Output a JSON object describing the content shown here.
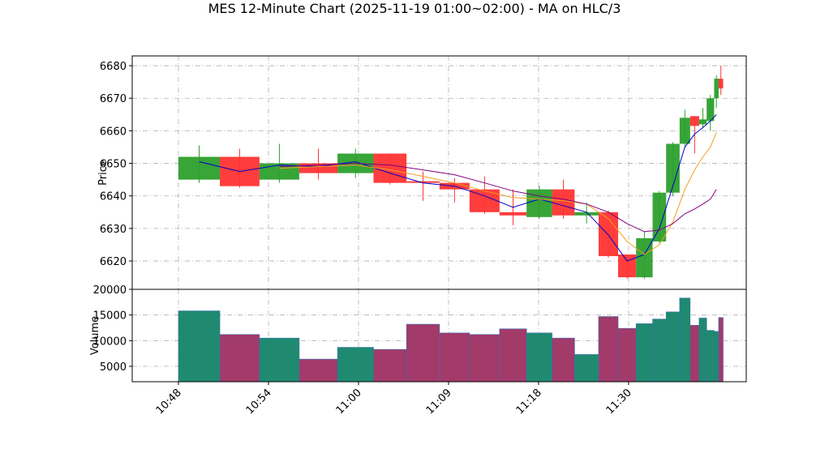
{
  "chart_data": {
    "type": "candlestick",
    "title": "MES 12-Minute Chart (2025-11-19 01:00~02:00) - MA on HLC/3",
    "ylabel": "Price",
    "volume_ylabel": "Volume",
    "x": [
      0,
      2.76,
      5.4,
      8.05,
      10.6,
      13,
      15.2,
      17.4,
      19.4,
      21.4,
      23.2,
      24.9,
      26.4,
      28,
      29.3,
      30.5,
      31.6,
      32.5,
      33.4,
      34.1,
      34.7,
      35.2,
      35.7,
      36
    ],
    "open": [
      6645,
      6652,
      6645,
      6650,
      6647,
      6653,
      6644.5,
      6644,
      6642,
      6635,
      6633.5,
      6642,
      6634,
      6635,
      6622,
      6615,
      6626,
      6641,
      6656,
      6664.5,
      6662,
      6663,
      6670,
      6676
    ],
    "high": [
      6655.5,
      6654.5,
      6656,
      6654.5,
      6654.5,
      6653,
      6647.5,
      6645.5,
      6646,
      6642,
      6643,
      6645,
      6638,
      6635.5,
      6622,
      6629,
      6641.5,
      6656.5,
      6666.5,
      6664.5,
      6667,
      6671,
      6677,
      6680
    ],
    "low": [
      6644,
      6642.5,
      6644,
      6645,
      6645.5,
      6643.5,
      6638.5,
      6638,
      6634.5,
      6631,
      6633,
      6633,
      6631.5,
      6621,
      6614.5,
      6614.5,
      6625.5,
      6640,
      6655,
      6653,
      6661,
      6660,
      6667,
      6671
    ],
    "close": [
      6652,
      6643,
      6650,
      6647,
      6653,
      6644,
      6644,
      6642,
      6635,
      6634,
      6642,
      6634,
      6635,
      6621.5,
      6615,
      6627,
      6641,
      6656,
      6664,
      6661.5,
      6663.5,
      6670,
      6676,
      6673
    ],
    "volume": [
      15800,
      11200,
      10500,
      6400,
      8700,
      8300,
      13200,
      11500,
      11200,
      12300,
      11500,
      10500,
      7300,
      14700,
      12400,
      13300,
      14200,
      15600,
      18300,
      13000,
      14400,
      12000,
      11800,
      14500
    ],
    "up_color": "#2ca02c",
    "down_color": "#ff3333",
    "volume_up_color": "#1f8a70",
    "volume_down_color": "#a23a6a",
    "ma_series": [
      {
        "color": "#0000cc",
        "values": [
          6650.5,
          6647.5,
          6649.5,
          6649,
          6650.5,
          6647,
          6644,
          6643,
          6640,
          6636.5,
          6639,
          6637,
          6635,
          6628,
          6620,
          6622,
          6630,
          6643,
          6655,
          6659,
          6661,
          6663,
          6665,
          null
        ]
      },
      {
        "color": "#f0a020",
        "values": [
          null,
          null,
          6648.5,
          6649,
          6649.5,
          6648,
          6646,
          6644,
          6641.5,
          6639.5,
          6639,
          6638.5,
          6637.5,
          6633,
          6626,
          6622,
          6625,
          6632,
          6642,
          6648,
          6652,
          6655,
          6659.5,
          null
        ]
      },
      {
        "color": "#800080",
        "values": [
          null,
          null,
          6649,
          6649.5,
          6650,
          6649.5,
          6648,
          6646.5,
          6644,
          6641.5,
          6640,
          6639,
          6637.5,
          6635,
          6631.5,
          6629,
          6629.5,
          6631.5,
          6634.5,
          6636,
          6637.5,
          6639,
          6642,
          null
        ]
      }
    ],
    "xlim": [
      -3.08,
      37.84
    ],
    "xticks": [
      {
        "value": 0,
        "label": "10:48"
      },
      {
        "value": 6,
        "label": "10:54"
      },
      {
        "value": 12,
        "label": "11:00"
      },
      {
        "value": 18,
        "label": "11:09"
      },
      {
        "value": 24,
        "label": "11:18"
      },
      {
        "value": 30,
        "label": "11:30"
      }
    ],
    "ylim": [
      6611.3,
      6683
    ],
    "yticks": [
      6620,
      6630,
      6640,
      6650,
      6660,
      6670,
      6680
    ],
    "volume_ylim": [
      2000,
      20000
    ],
    "volume_yticks": [
      5000,
      10000,
      15000,
      20000
    ],
    "grid": true
  }
}
